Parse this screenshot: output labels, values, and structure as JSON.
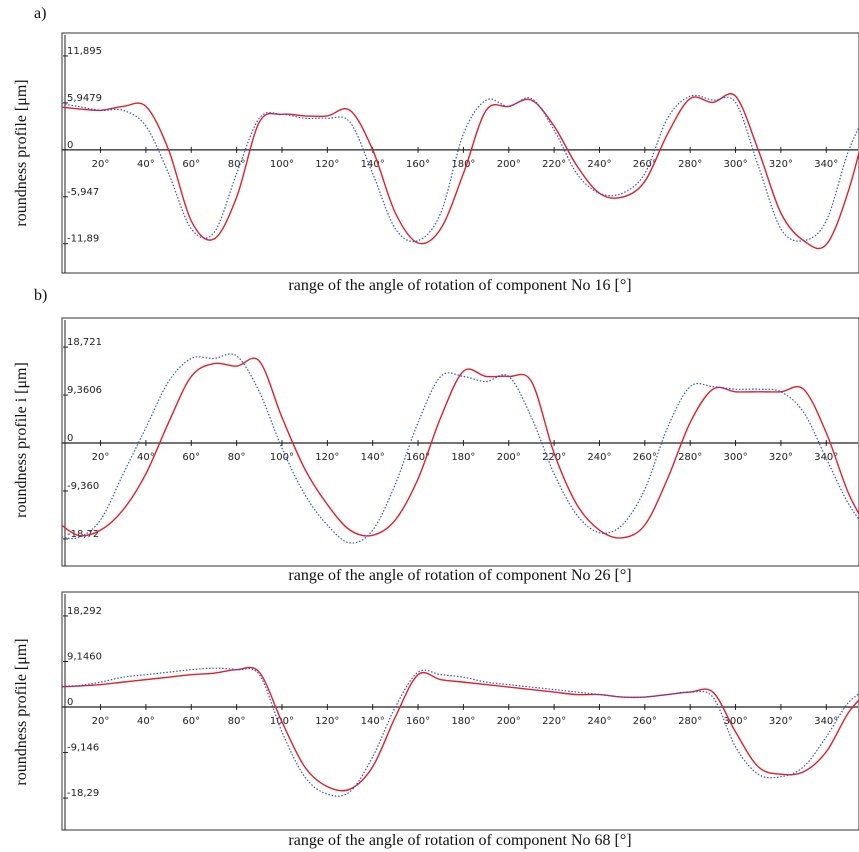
{
  "chart_data": [
    {
      "type": "line",
      "panel_label": "a)",
      "y_label": "roundness profile [μm]",
      "x_label": "range of the angle of rotation of component No 16 [°]",
      "x": [
        0,
        10,
        20,
        30,
        40,
        50,
        60,
        70,
        80,
        90,
        100,
        110,
        120,
        130,
        140,
        150,
        160,
        170,
        180,
        190,
        200,
        210,
        220,
        230,
        240,
        250,
        260,
        270,
        280,
        290,
        300,
        310,
        320,
        330,
        340,
        350,
        360
      ],
      "xlim": [
        3,
        354
      ],
      "xticks": [
        {
          "value": 20,
          "label": "20°"
        },
        {
          "value": 40,
          "label": "40°"
        },
        {
          "value": 60,
          "label": "60°"
        },
        {
          "value": 80,
          "label": "80°"
        },
        {
          "value": 100,
          "label": "100°"
        },
        {
          "value": 120,
          "label": "120°"
        },
        {
          "value": 140,
          "label": "140°"
        },
        {
          "value": 160,
          "label": "160°"
        },
        {
          "value": 180,
          "label": "180°"
        },
        {
          "value": 200,
          "label": "200°"
        },
        {
          "value": 220,
          "label": "220°"
        },
        {
          "value": 240,
          "label": "240°"
        },
        {
          "value": 260,
          "label": "260°"
        },
        {
          "value": 280,
          "label": "280°"
        },
        {
          "value": 300,
          "label": "300°"
        },
        {
          "value": 320,
          "label": "320°"
        },
        {
          "value": 340,
          "label": "340°"
        }
      ],
      "ylim": [
        -15.6,
        14.8
      ],
      "yticks": [
        {
          "value": 11.895,
          "label": "11,895"
        },
        {
          "value": 5.9479,
          "label": "5,9479"
        },
        0,
        {
          "value": -5.947,
          "label": "-5,947"
        },
        {
          "value": -11.89,
          "label": "-11,89"
        }
      ],
      "series": [
        {
          "color": "#e0202a",
          "style": "solid",
          "values": [
            5.5,
            5.2,
            5.0,
            5.5,
            5.5,
            0,
            -9,
            -11.3,
            -6,
            3.5,
            4.5,
            4.3,
            4.3,
            5,
            0,
            -8,
            -11.8,
            -10,
            -3,
            5,
            5.5,
            6.3,
            3,
            -2,
            -5.5,
            -6,
            -4,
            2,
            6.5,
            6,
            6.8,
            0,
            -8,
            -11.5,
            -12,
            -5,
            6
          ]
        },
        {
          "color": "#3050e0",
          "style": "dotted",
          "values": [
            6,
            5.5,
            5,
            5,
            3,
            -3,
            -10,
            -10.5,
            -3,
            4,
            4.5,
            4,
            4,
            3.5,
            -3,
            -10,
            -11.5,
            -8,
            2,
            6.3,
            5.5,
            6.5,
            2.5,
            -3,
            -5.5,
            -5.5,
            -3,
            4,
            6.8,
            6.3,
            6,
            -2,
            -10,
            -11.5,
            -9,
            0,
            6
          ]
        }
      ]
    },
    {
      "type": "line",
      "panel_label": "b)",
      "y_label": "roundness profile i [μm]",
      "x_label": "range of the angle of rotation of component No 26 [°]",
      "x": [
        0,
        10,
        20,
        30,
        40,
        50,
        60,
        70,
        80,
        90,
        100,
        110,
        120,
        130,
        140,
        150,
        160,
        170,
        180,
        190,
        200,
        210,
        220,
        230,
        240,
        250,
        260,
        270,
        280,
        290,
        300,
        310,
        320,
        330,
        340,
        350,
        360
      ],
      "xlim": [
        3,
        354
      ],
      "xticks": [
        {
          "value": 20,
          "label": "20°"
        },
        {
          "value": 40,
          "label": "40°"
        },
        {
          "value": 60,
          "label": "60°"
        },
        {
          "value": 80,
          "label": "80°"
        },
        {
          "value": 100,
          "label": "100°"
        },
        {
          "value": 120,
          "label": "120°"
        },
        {
          "value": 140,
          "label": "140°"
        },
        {
          "value": 160,
          "label": "160°"
        },
        {
          "value": 180,
          "label": "180°"
        },
        {
          "value": 200,
          "label": "200°"
        },
        {
          "value": 220,
          "label": "220°"
        },
        {
          "value": 240,
          "label": "240°"
        },
        {
          "value": 260,
          "label": "260°"
        },
        {
          "value": 280,
          "label": "280°"
        },
        {
          "value": 300,
          "label": "300°"
        },
        {
          "value": 320,
          "label": "320°"
        },
        {
          "value": 340,
          "label": "340°"
        }
      ],
      "ylim": [
        -24,
        24.4
      ],
      "yticks": [
        {
          "value": 18.721,
          "label": "18,721"
        },
        {
          "value": 9.3606,
          "label": "9,3606"
        },
        0,
        {
          "value": -9.36,
          "label": "-9,360"
        },
        {
          "value": -18.72,
          "label": "-18,72"
        }
      ],
      "series": [
        {
          "color": "#e0202a",
          "style": "solid",
          "values": [
            -15,
            -18,
            -17,
            -13,
            -6,
            4,
            13,
            15.5,
            15,
            16,
            5,
            -5,
            -12,
            -17,
            -18,
            -15,
            -7,
            5,
            14,
            13,
            13,
            12,
            -2,
            -12,
            -17,
            -18.5,
            -16,
            -7,
            4,
            10.5,
            10,
            10,
            10,
            10.5,
            2,
            -10,
            -18
          ]
        },
        {
          "color": "#3050e0",
          "style": "dotted",
          "values": [
            -18,
            -18.5,
            -15,
            -6,
            3,
            12,
            16.5,
            16.5,
            17,
            10,
            -1,
            -10,
            -16,
            -19.5,
            -17,
            -8,
            4,
            13,
            13,
            12,
            13,
            5,
            -6,
            -14,
            -17.5,
            -16,
            -9,
            3,
            11,
            11,
            10.5,
            10.5,
            10,
            6,
            -3,
            -12,
            -18
          ]
        }
      ]
    },
    {
      "type": "line",
      "y_label": "roundness profile [μm]",
      "x_label": "range of the angle of rotation of component No 68 [°]",
      "x": [
        0,
        10,
        20,
        30,
        40,
        50,
        60,
        70,
        80,
        90,
        100,
        110,
        120,
        130,
        140,
        150,
        160,
        170,
        180,
        190,
        200,
        210,
        220,
        230,
        240,
        250,
        260,
        270,
        280,
        290,
        300,
        310,
        320,
        330,
        340,
        350,
        360
      ],
      "xlim": [
        3,
        354
      ],
      "xticks": [
        {
          "value": 20,
          "label": "20°"
        },
        {
          "value": 40,
          "label": "40°"
        },
        {
          "value": 60,
          "label": "60°"
        },
        {
          "value": 80,
          "label": "80°"
        },
        {
          "value": 100,
          "label": "100°"
        },
        {
          "value": 120,
          "label": "120°"
        },
        {
          "value": 140,
          "label": "140°"
        },
        {
          "value": 160,
          "label": "160°"
        },
        {
          "value": 180,
          "label": "180°"
        },
        {
          "value": 200,
          "label": "200°"
        },
        {
          "value": 220,
          "label": "220°"
        },
        {
          "value": 240,
          "label": "240°"
        },
        {
          "value": 260,
          "label": "260°"
        },
        {
          "value": 280,
          "label": "280°"
        },
        {
          "value": 300,
          "label": "300°"
        },
        {
          "value": 320,
          "label": "320°"
        },
        {
          "value": 340,
          "label": "340°"
        }
      ],
      "ylim": [
        -24.7,
        23.1
      ],
      "yticks": [
        {
          "value": 18.292,
          "label": "18,292"
        },
        {
          "value": 9.146,
          "label": "9,1460"
        },
        0,
        {
          "value": -9.146,
          "label": "-9,146"
        },
        {
          "value": -18.29,
          "label": "-18,29"
        }
      ],
      "series": [
        {
          "color": "#e0202a",
          "style": "solid",
          "values": [
            4,
            4.2,
            4.5,
            5,
            5.5,
            6,
            6.5,
            6.8,
            7.5,
            7,
            -3,
            -12,
            -16,
            -16.5,
            -12,
            -2,
            6.5,
            5.5,
            5,
            4.5,
            4,
            3.5,
            3,
            2.5,
            2.5,
            2,
            2,
            2.5,
            3,
            3,
            -5,
            -12,
            -13.5,
            -13,
            -9,
            -1,
            4
          ]
        },
        {
          "color": "#3050e0",
          "style": "dotted",
          "values": [
            4.2,
            4.3,
            5,
            6,
            6.5,
            7,
            7.5,
            7.8,
            7.5,
            6.5,
            -5,
            -14,
            -17.5,
            -17,
            -10,
            0,
            7,
            6.5,
            6,
            5,
            4.5,
            4,
            3.5,
            3,
            2.5,
            2,
            2,
            2.5,
            3,
            2,
            -8,
            -13.5,
            -14,
            -12,
            -6,
            1,
            4
          ]
        }
      ]
    }
  ]
}
